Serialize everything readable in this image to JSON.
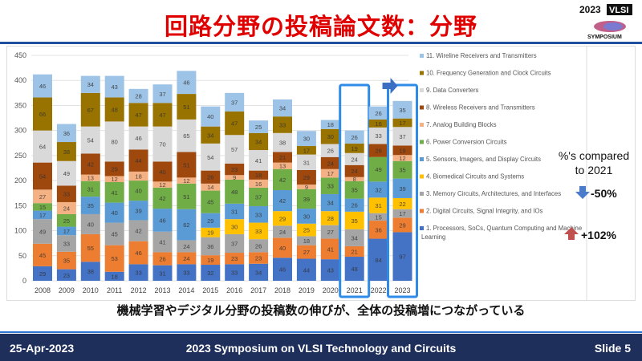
{
  "slide": {
    "title": "回路分野の投稿論文数：分野",
    "logo_text": "2023 VLSI SYMPOSIUM",
    "subtitle": "機械学習やデジタル分野の投稿数の伸びが、全体の投稿増につながっている",
    "footer": {
      "date": "25-Apr-2023",
      "event": "2023 Symposium on VLSI Technology and Circuits",
      "slide": "Slide 5"
    },
    "annotation": {
      "compare_label_1": "%'s compared",
      "compare_label_2": "to 2021",
      "memory_change": "-50%",
      "processors_change": "+102%"
    }
  },
  "chart_data": {
    "type": "bar",
    "stacked": true,
    "ylim": [
      0,
      450
    ],
    "yticks": [
      0,
      50,
      100,
      150,
      200,
      250,
      300,
      350,
      400,
      450
    ],
    "grid": true,
    "legend_position": "right",
    "highlighted_categories": [
      "2021",
      "2023"
    ],
    "categories": [
      "2008",
      "2009",
      "2010",
      "2011",
      "2012",
      "2013",
      "2014",
      "2015",
      "2016",
      "2017",
      "2018",
      "2019",
      "2020",
      "2021",
      "2022",
      "2023"
    ],
    "series": [
      {
        "name": "1. Processors, SoCs, Quantum Computing and Machine Learning",
        "color": "#4472c4",
        "values": [
          29,
          23,
          38,
          18,
          33,
          31,
          33,
          32,
          33,
          34,
          46,
          44,
          43,
          48,
          84,
          97
        ]
      },
      {
        "name": "2. Digital Circuits, Signal Integrity, and IOs",
        "color": "#ed7d31",
        "values": [
          45,
          35,
          55,
          53,
          46,
          26,
          24,
          19,
          23,
          23,
          40,
          27,
          41,
          21,
          36,
          29
        ]
      },
      {
        "name": "3. Memory Circuits, Architectures, and Interfaces",
        "color": "#a5a5a5",
        "values": [
          49,
          33,
          40,
          45,
          42,
          41,
          24,
          36,
          37,
          26,
          24,
          18,
          27,
          34,
          15,
          17
        ]
      },
      {
        "name": "4. Biomedical Circuits and Systems",
        "color": "#ffc000",
        "values": [
          null,
          null,
          null,
          null,
          null,
          null,
          null,
          19,
          30,
          33,
          29,
          25,
          28,
          35,
          31,
          22
        ]
      },
      {
        "name": "5. Sensors, Imagers, and Display Circuits",
        "color": "#5b9bd5",
        "values": [
          17,
          17,
          35,
          40,
          39,
          46,
          62,
          29,
          31,
          33,
          42,
          30,
          34,
          26,
          32,
          39
        ]
      },
      {
        "name": "6. Power Conversion Circuits",
        "color": "#70ad47",
        "values": [
          15,
          25,
          31,
          41,
          40,
          42,
          51,
          45,
          48,
          37,
          42,
          39,
          33,
          35,
          49,
          35
        ]
      },
      {
        "name": "7. Analog Building Blocks",
        "color": "#f4b183",
        "values": [
          27,
          24,
          13,
          12,
          18,
          12,
          12,
          14,
          9,
          16,
          13,
          9,
          17,
          8,
          null,
          12
        ]
      },
      {
        "name": "8. Wireless Receivers and Transmitters",
        "color": "#9e480e",
        "values": [
          54,
          33,
          42,
          29,
          44,
          40,
          51,
          26,
          23,
          18,
          21,
          29,
          24,
          24,
          26,
          19
        ]
      },
      {
        "name": "9. Data Converters",
        "color": "#d9d9d9",
        "values": [
          64,
          49,
          54,
          80,
          46,
          70,
          65,
          54,
          57,
          41,
          38,
          31,
          26,
          24,
          33,
          37
        ]
      },
      {
        "name": "10. Frequency Generation and Clock Circuits",
        "color": "#997300",
        "values": [
          66,
          38,
          67,
          48,
          47,
          47,
          51,
          34,
          47,
          34,
          33,
          17,
          30,
          19,
          16,
          17
        ]
      },
      {
        "name": "11. Wireline Receivers and Transmitters",
        "color": "#9dc3e6",
        "values": [
          46,
          36,
          34,
          43,
          28,
          37,
          46,
          40,
          37,
          25,
          34,
          30,
          18,
          26,
          26,
          35
        ]
      }
    ]
  }
}
